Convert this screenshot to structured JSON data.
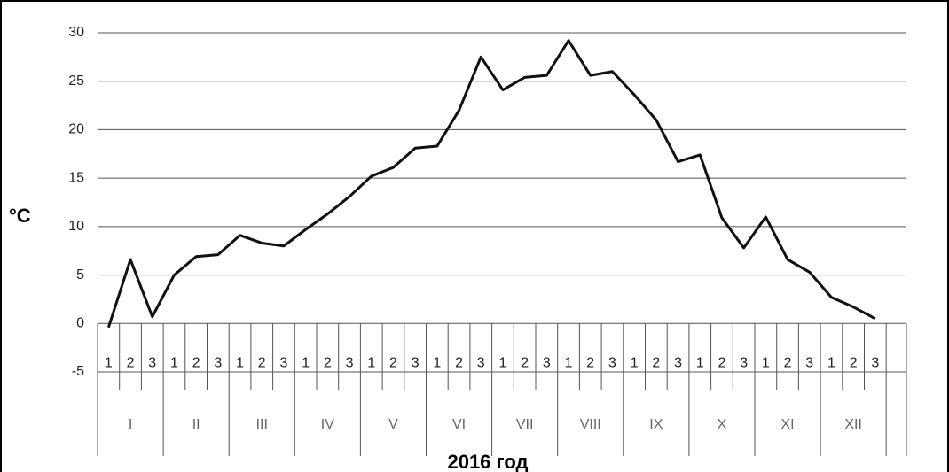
{
  "chart_data": {
    "type": "line",
    "y_label": "°C",
    "x_label": "2016 год",
    "categories": [
      "1",
      "2",
      "3",
      "1",
      "2",
      "3",
      "1",
      "2",
      "3",
      "1",
      "2",
      "3",
      "1",
      "2",
      "3",
      "1",
      "2",
      "3",
      "1",
      "2",
      "3",
      "1",
      "2",
      "3",
      "1",
      "2",
      "3",
      "1",
      "2",
      "3",
      "1",
      "2",
      "3",
      "1",
      "2",
      "3"
    ],
    "groups": [
      "I",
      "II",
      "III",
      "IV",
      "V",
      "VI",
      "VII",
      "VIII",
      "IX",
      "X",
      "XI",
      "XII"
    ],
    "series": [
      {
        "color": "#111111",
        "values": [
          -0.4,
          6.6,
          0.7,
          5.0,
          6.9,
          7.1,
          9.1,
          8.3,
          8.0,
          9.7,
          11.3,
          13.1,
          15.2,
          16.1,
          18.1,
          18.3,
          22.0,
          27.5,
          24.1,
          25.4,
          25.6,
          29.2,
          25.6,
          26.0,
          23.6,
          21.0,
          16.7,
          17.4,
          10.9,
          7.8,
          11.0,
          6.6,
          5.3,
          2.7,
          1.7,
          0.5
        ]
      }
    ],
    "ylim": [
      -5,
      30
    ],
    "yticks": [
      -5,
      0,
      5,
      10,
      15,
      20,
      25,
      30
    ],
    "grid": true
  }
}
